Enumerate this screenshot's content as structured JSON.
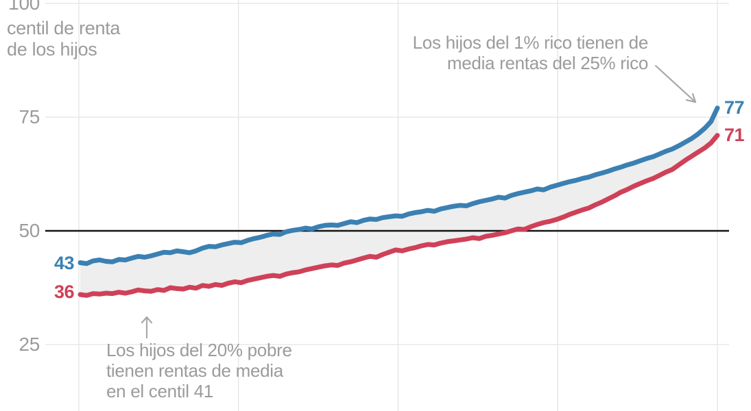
{
  "axis_title": {
    "line1": "centil de renta",
    "line2": "de los hijos"
  },
  "y_tick_labels": {
    "t100": "100",
    "t75": "75",
    "t50": "50",
    "t25": "25"
  },
  "annotations": {
    "rich": {
      "line1": "Los hijos del 1% rico tienen de",
      "line2": "media rentas del 25% rico"
    },
    "poor": {
      "line1": "Los hijos del 20% pobre",
      "line2": "tienen rentas de media",
      "line3": "en el centil 41"
    }
  },
  "colors": {
    "blue": "#3b80b2",
    "red": "#cf4158",
    "band": "#eeeeee",
    "grid": "#e4e4e4",
    "reference_line": "#141414",
    "text_gray": "#9b9b9b",
    "arrow_gray": "#a8a8a8",
    "background": "#ffffff"
  },
  "chart_data": {
    "type": "line",
    "xlabel": "",
    "ylabel": "centil de renta de los hijos",
    "x_range": [
      1,
      100
    ],
    "ylim_visible": [
      10,
      100
    ],
    "y_ticks": [
      25,
      50,
      75,
      100
    ],
    "reference_line_y": 50,
    "grid": "on",
    "legend": "none",
    "band_between_series": true,
    "series": [
      {
        "name": "serie_azul",
        "color": "#3b80b2",
        "start_label": "43",
        "end_label": "77",
        "values": [
          43.0,
          42.8,
          43.4,
          43.6,
          43.3,
          43.2,
          43.7,
          43.6,
          44.0,
          44.4,
          44.2,
          44.5,
          44.9,
          45.3,
          45.2,
          45.6,
          45.4,
          45.2,
          45.6,
          46.2,
          46.6,
          46.5,
          46.9,
          47.2,
          47.5,
          47.4,
          47.9,
          48.3,
          48.6,
          49.0,
          49.3,
          49.2,
          49.8,
          50.1,
          50.3,
          50.6,
          50.4,
          50.9,
          51.2,
          51.3,
          51.2,
          51.6,
          52.0,
          51.8,
          52.3,
          52.6,
          52.5,
          52.9,
          53.1,
          53.3,
          53.2,
          53.7,
          54.0,
          54.2,
          54.5,
          54.3,
          54.8,
          55.1,
          55.4,
          55.6,
          55.5,
          56.0,
          56.4,
          56.7,
          57.0,
          57.4,
          57.2,
          57.8,
          58.2,
          58.5,
          58.8,
          59.2,
          59.0,
          59.6,
          60.0,
          60.4,
          60.8,
          61.1,
          61.5,
          61.8,
          62.3,
          62.7,
          63.1,
          63.6,
          64.0,
          64.5,
          64.9,
          65.4,
          65.9,
          66.3,
          66.9,
          67.5,
          68.0,
          68.7,
          69.5,
          70.3,
          71.3,
          72.5,
          74.0,
          77.0
        ]
      },
      {
        "name": "serie_roja",
        "color": "#cf4158",
        "start_label": "36",
        "end_label": "71",
        "values": [
          36.0,
          35.8,
          36.2,
          36.1,
          36.3,
          36.2,
          36.5,
          36.3,
          36.6,
          37.0,
          36.8,
          36.7,
          37.1,
          36.9,
          37.5,
          37.3,
          37.2,
          37.6,
          37.4,
          38.0,
          37.8,
          38.2,
          38.0,
          38.5,
          38.8,
          38.6,
          39.1,
          39.4,
          39.7,
          40.0,
          40.2,
          40.0,
          40.5,
          40.8,
          41.0,
          41.4,
          41.7,
          42.0,
          42.3,
          42.5,
          42.4,
          42.9,
          43.2,
          43.6,
          44.0,
          44.4,
          44.2,
          44.8,
          45.3,
          45.8,
          45.6,
          46.0,
          46.3,
          46.7,
          47.0,
          46.9,
          47.3,
          47.6,
          47.8,
          48.0,
          48.2,
          48.5,
          48.3,
          48.8,
          49.0,
          49.3,
          49.6,
          50.0,
          50.4,
          50.3,
          50.9,
          51.4,
          51.8,
          52.1,
          52.5,
          53.0,
          53.6,
          54.1,
          54.6,
          55.0,
          55.7,
          56.3,
          57.0,
          57.7,
          58.5,
          59.1,
          59.8,
          60.4,
          61.0,
          61.5,
          62.2,
          62.9,
          63.5,
          64.5,
          65.5,
          66.4,
          67.3,
          68.2,
          69.3,
          71.0
        ]
      }
    ],
    "annotations": [
      "Los hijos del 1% rico tienen de media rentas del 25% rico",
      "Los hijos del 20% pobre tienen rentas de media en el centil 41"
    ]
  }
}
